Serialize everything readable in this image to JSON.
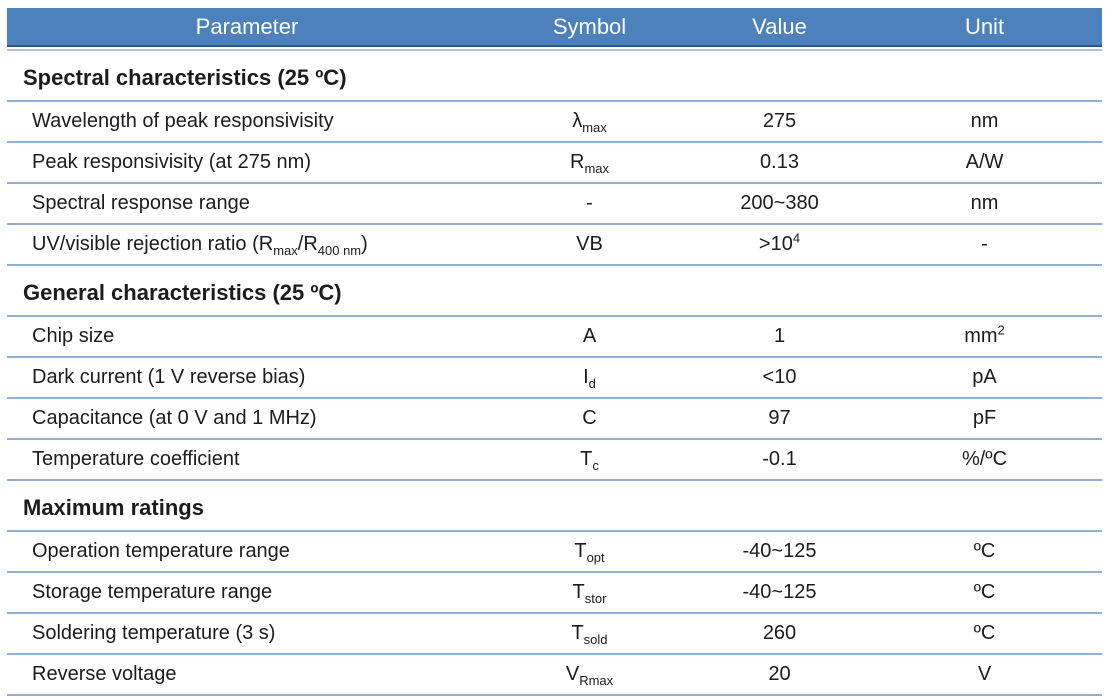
{
  "header": {
    "columns": [
      "Parameter",
      "Symbol",
      "Value",
      "Unit"
    ]
  },
  "colors": {
    "header_bg": "#4d81bb",
    "header_text": "#ffffff",
    "header_edge": "#2b578c",
    "header_rule": "#a9c3de",
    "row_line": "#8fafd4"
  },
  "sections": [
    {
      "title": "Spectral characteristics (25 ºC)",
      "rows": [
        {
          "param": "Wavelength of peak responsivisity",
          "symbol": [
            {
              "t": "λ"
            },
            {
              "t": "max",
              "sub": true
            }
          ],
          "value": "275",
          "unit": "nm"
        },
        {
          "param": "Peak responsivisity (at 275 nm)",
          "symbol": [
            {
              "t": "R"
            },
            {
              "t": "max",
              "sub": true
            }
          ],
          "value": "0.13",
          "unit": "A/W"
        },
        {
          "param": "Spectral response range",
          "symbol": "-",
          "value": "200~380",
          "unit": "nm"
        },
        {
          "param": [
            {
              "t": "UV/visible rejection ratio (R"
            },
            {
              "t": "max",
              "sub": true
            },
            {
              "t": "/R"
            },
            {
              "t": "400 nm",
              "sub": true
            },
            {
              "t": ")"
            }
          ],
          "symbol": "VB",
          "value": [
            {
              "t": ">10"
            },
            {
              "t": "4",
              "sup": true
            }
          ],
          "unit": "-"
        }
      ]
    },
    {
      "title": "General characteristics (25 ºC)",
      "rows": [
        {
          "param": "Chip size",
          "symbol": "A",
          "value": "1",
          "unit": [
            {
              "t": "mm"
            },
            {
              "t": "2",
              "sup": true
            }
          ]
        },
        {
          "param": "Dark current (1 V reverse bias)",
          "symbol": [
            {
              "t": "I"
            },
            {
              "t": "d",
              "sub": true
            }
          ],
          "value": "<10",
          "unit": "pA"
        },
        {
          "param": "Capacitance (at 0 V and 1 MHz)",
          "symbol": "C",
          "value": "97",
          "unit": "pF"
        },
        {
          "param": "Temperature coefficient",
          "symbol": [
            {
              "t": "T"
            },
            {
              "t": "c",
              "sub": true
            }
          ],
          "value": "-0.1",
          "unit": "%/ºC"
        }
      ]
    },
    {
      "title": "Maximum ratings",
      "rows": [
        {
          "param": "Operation temperature range",
          "symbol": [
            {
              "t": "T"
            },
            {
              "t": "opt",
              "sub": true
            }
          ],
          "value": "-40~125",
          "unit": "ºC"
        },
        {
          "param": "Storage temperature range",
          "symbol": [
            {
              "t": "T"
            },
            {
              "t": "stor",
              "sub": true
            }
          ],
          "value": "-40~125",
          "unit": "ºC"
        },
        {
          "param": "Soldering temperature (3 s)",
          "symbol": [
            {
              "t": "T"
            },
            {
              "t": "sold",
              "sub": true
            }
          ],
          "value": "260",
          "unit": "ºC"
        },
        {
          "param": "Reverse voltage",
          "symbol": [
            {
              "t": "V"
            },
            {
              "t": "Rmax",
              "sub": true
            }
          ],
          "value": "20",
          "unit": "V"
        }
      ]
    }
  ]
}
